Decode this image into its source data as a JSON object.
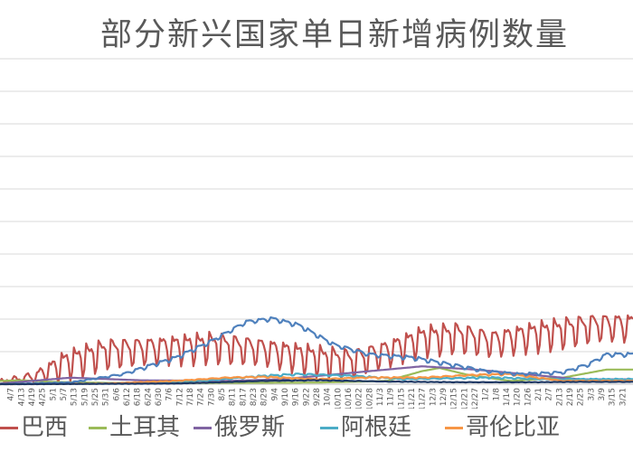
{
  "chart_data": {
    "type": "line",
    "title": "部分新兴国家单日新增病例数量",
    "xlabel": "",
    "ylabel": "",
    "grid": true,
    "legend_position": "bottom",
    "x_tick_labels": [
      "4/7",
      "4/13",
      "4/19",
      "4/25",
      "5/1",
      "5/7",
      "5/13",
      "5/19",
      "5/25",
      "5/31",
      "6/6",
      "6/12",
      "6/18",
      "6/24",
      "6/30",
      "7/6",
      "7/12",
      "7/18",
      "7/24",
      "7/30",
      "8/5",
      "8/11",
      "8/17",
      "8/23",
      "8/29",
      "9/4",
      "9/10",
      "9/16",
      "9/22",
      "9/28",
      "10/4",
      "10/10",
      "10/16",
      "10/22",
      "10/28",
      "11/3",
      "11/9",
      "11/15",
      "11/21",
      "11/27",
      "12/3",
      "12/9",
      "12/15",
      "12/21",
      "12/27",
      "1/2",
      "1/8",
      "1/14",
      "1/20",
      "1/26",
      "2/1",
      "2/7",
      "2/13",
      "2/19",
      "2/25",
      "3/3",
      "3/9",
      "3/15",
      "3/21"
    ],
    "x_start": "2020-04-01",
    "x_end": "2021-03-27",
    "y_relative_scale": [
      0,
      10
    ],
    "series": [
      {
        "name": "巴西",
        "color": "#C0504D",
        "points": [
          [
            0,
            0.05
          ],
          [
            20,
            0.2
          ],
          [
            40,
            0.6
          ],
          [
            60,
            0.9
          ],
          [
            90,
            1.0
          ],
          [
            120,
            1.1
          ],
          [
            150,
            0.95
          ],
          [
            180,
            0.7
          ],
          [
            200,
            0.6
          ],
          [
            220,
            0.9
          ],
          [
            240,
            1.3
          ],
          [
            260,
            1.4
          ],
          [
            280,
            1.2
          ],
          [
            300,
            1.4
          ],
          [
            340,
            1.7
          ]
        ],
        "weekly_amp": 0.45
      },
      {
        "name": "土耳其",
        "color": "#9BBB59",
        "points": [
          [
            0,
            0.1
          ],
          [
            12,
            0.12
          ],
          [
            30,
            0.07
          ],
          [
            60,
            0.04
          ],
          [
            120,
            0.04
          ],
          [
            180,
            0.05
          ],
          [
            220,
            0.1
          ],
          [
            240,
            0.4
          ],
          [
            250,
            0.5
          ],
          [
            265,
            0.3
          ],
          [
            290,
            0.1
          ],
          [
            320,
            0.2
          ],
          [
            345,
            0.45
          ]
        ],
        "weekly_amp": 0.0
      },
      {
        "name": "俄罗斯",
        "color": "#8064A2",
        "points": [
          [
            0,
            0.02
          ],
          [
            40,
            0.2
          ],
          [
            80,
            0.12
          ],
          [
            130,
            0.1
          ],
          [
            160,
            0.15
          ],
          [
            200,
            0.35
          ],
          [
            240,
            0.55
          ],
          [
            270,
            0.45
          ],
          [
            300,
            0.3
          ],
          [
            330,
            0.15
          ],
          [
            345,
            0.15
          ]
        ],
        "weekly_amp": 0.0
      },
      {
        "name": "阿根廷",
        "color": "#4BACC6",
        "points": [
          [
            0,
            0.0
          ],
          [
            80,
            0.03
          ],
          [
            120,
            0.12
          ],
          [
            150,
            0.25
          ],
          [
            170,
            0.3
          ],
          [
            200,
            0.25
          ],
          [
            230,
            0.15
          ],
          [
            260,
            0.18
          ],
          [
            280,
            0.2
          ],
          [
            310,
            0.15
          ],
          [
            345,
            0.15
          ]
        ],
        "weekly_amp": 0.05
      },
      {
        "name": "哥伦比亚",
        "color": "#F79646",
        "points": [
          [
            0,
            0.0
          ],
          [
            60,
            0.02
          ],
          [
            100,
            0.1
          ],
          [
            130,
            0.2
          ],
          [
            150,
            0.22
          ],
          [
            180,
            0.15
          ],
          [
            210,
            0.2
          ],
          [
            240,
            0.2
          ],
          [
            270,
            0.28
          ],
          [
            290,
            0.3
          ],
          [
            320,
            0.1
          ],
          [
            345,
            0.1
          ]
        ],
        "weekly_amp": 0.04
      },
      {
        "name": "",
        "color": "#4F81BD",
        "points": [
          [
            0,
            0.0
          ],
          [
            40,
            0.05
          ],
          [
            70,
            0.3
          ],
          [
            100,
            0.8
          ],
          [
            120,
            1.3
          ],
          [
            140,
            1.9
          ],
          [
            155,
            2.0
          ],
          [
            170,
            1.8
          ],
          [
            190,
            1.2
          ],
          [
            210,
            0.9
          ],
          [
            235,
            0.8
          ],
          [
            255,
            0.6
          ],
          [
            275,
            0.4
          ],
          [
            295,
            0.3
          ],
          [
            320,
            0.35
          ],
          [
            335,
            0.6
          ],
          [
            345,
            0.9
          ]
        ],
        "weekly_amp": 0.06
      },
      {
        "name": "",
        "color": "#1F3864",
        "points": [
          [
            0,
            0.0
          ],
          [
            100,
            0.02
          ],
          [
            150,
            0.1
          ],
          [
            180,
            0.12
          ],
          [
            220,
            0.08
          ],
          [
            260,
            0.06
          ],
          [
            300,
            0.06
          ],
          [
            330,
            0.07
          ],
          [
            345,
            0.07
          ]
        ],
        "weekly_amp": 0.03
      }
    ]
  }
}
